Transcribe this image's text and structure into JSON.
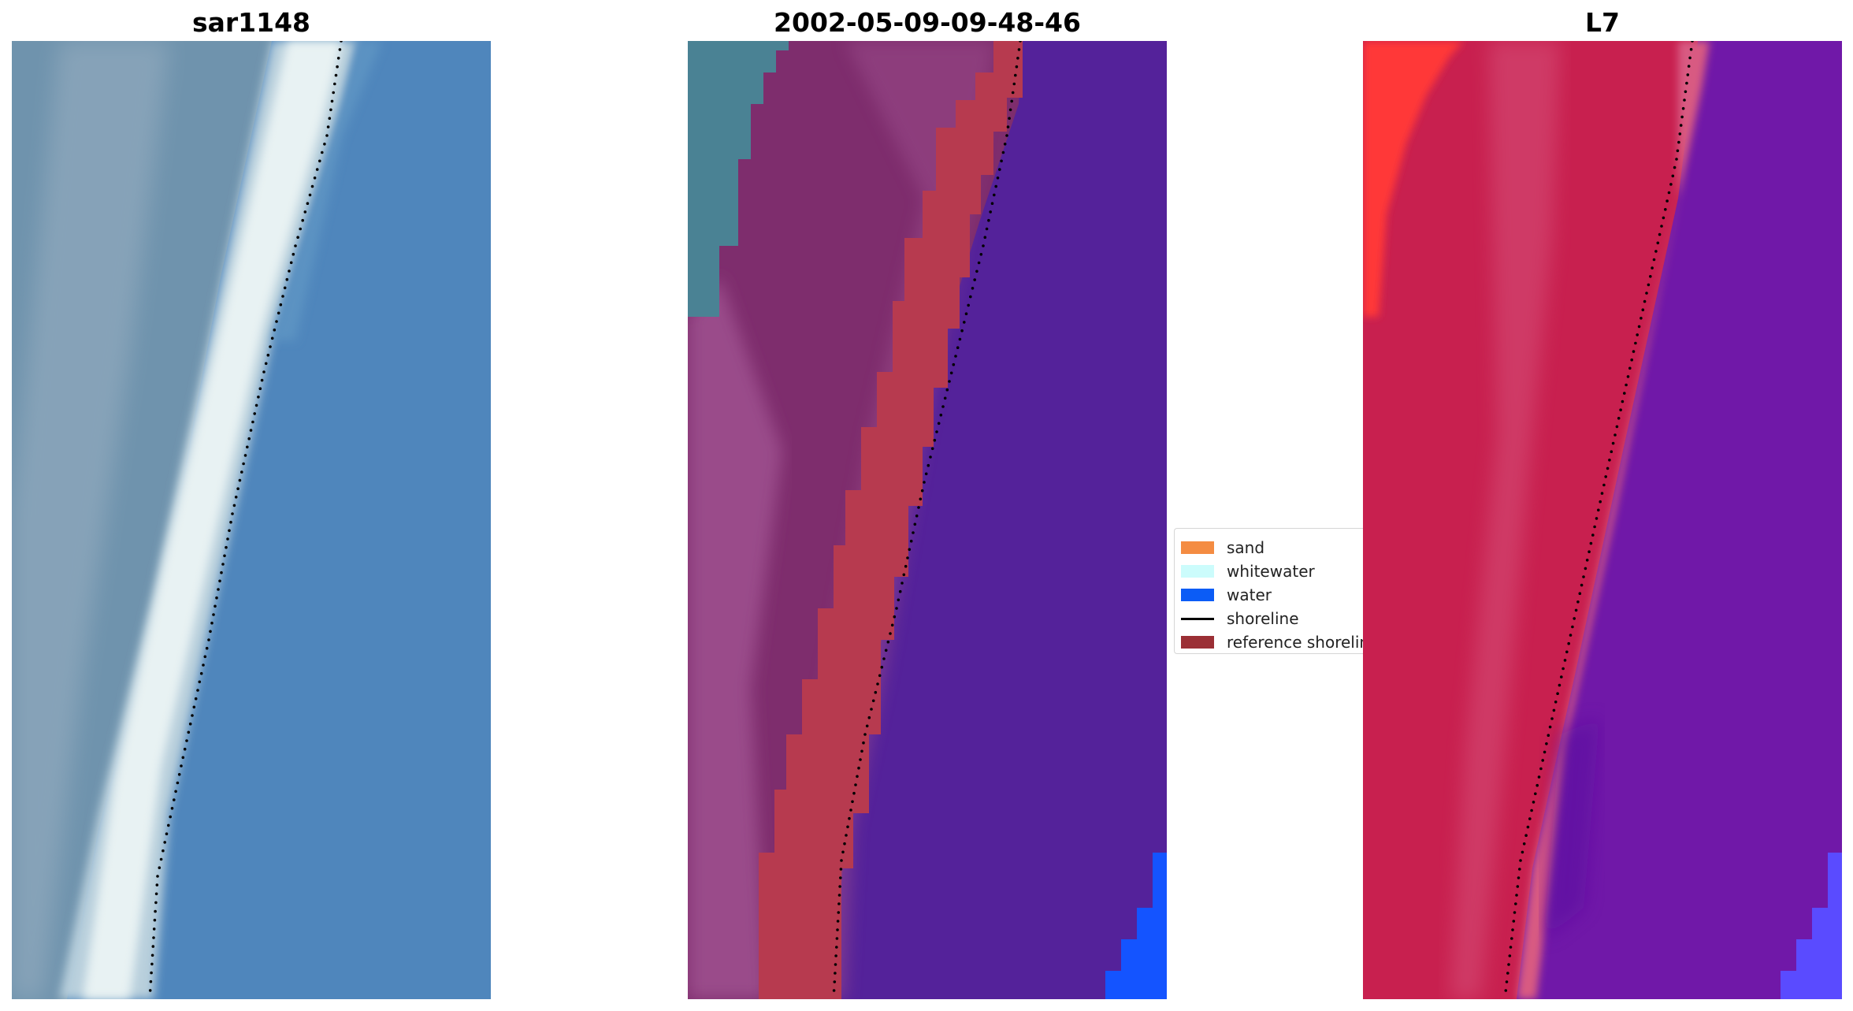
{
  "panels": [
    {
      "title": "sar1148",
      "kind": "rgb-image",
      "colors": {
        "water": "#4f86bc",
        "water_light": "#5b93c2",
        "land": "#6f93ad",
        "land_dark": "#5a7f98",
        "land_light": "#a3b6c6",
        "whitewater": "#e8f2f3",
        "whitewater_edge": "#b8cfdc"
      }
    },
    {
      "title": "2002-05-09-09-48-46",
      "kind": "classified-overlay",
      "colors": {
        "water_class": "#54229a",
        "open_water": "#1454ff",
        "sand_overlay": "#b73a4f",
        "land_overlay": "#7e2d6d",
        "land_overlay_light": "#9a4c8a",
        "teal_corner": "#4a8294"
      }
    },
    {
      "title": "L7",
      "kind": "index-image",
      "colors": {
        "water": "#7018a8",
        "water_dark": "#5a0fa0",
        "land": "#c8204f",
        "land_light": "#d85a82",
        "bright_red": "#ff3838",
        "corner_blue": "#5a4bff"
      }
    }
  ],
  "legend": {
    "items": [
      {
        "label": "sand",
        "type": "patch",
        "color": "#f48c42"
      },
      {
        "label": "whitewater",
        "type": "patch",
        "color": "#ccfcfc"
      },
      {
        "label": "water",
        "type": "patch",
        "color": "#0b5cf6"
      },
      {
        "label": "shoreline",
        "type": "line",
        "color": "#000000"
      },
      {
        "label": "reference shoreline",
        "type": "patch",
        "color": "#9b2f35"
      }
    ]
  }
}
